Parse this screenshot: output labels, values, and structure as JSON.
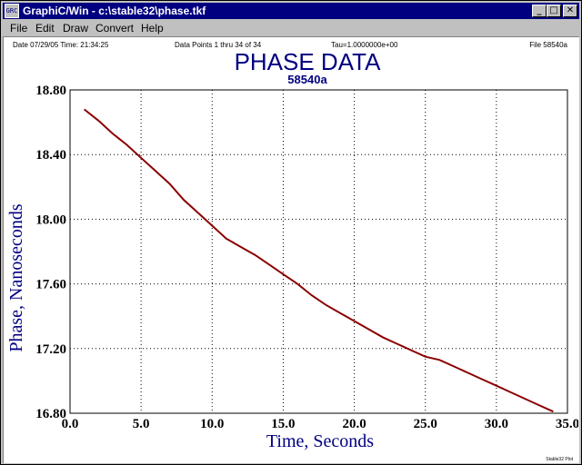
{
  "window": {
    "app_icon_text": "GRC",
    "title": "GraphiC/Win - c:\\stable32\\phase.tkf",
    "minimize_glyph": "_",
    "maximize_glyph": "□",
    "close_glyph": "✕"
  },
  "menu": [
    {
      "label": "File"
    },
    {
      "label": "Edit"
    },
    {
      "label": "Draw"
    },
    {
      "label": "Convert"
    },
    {
      "label": "Help"
    }
  ],
  "header": {
    "date": "Date  07/29/05  Time: 21:34:25",
    "points": "Data Points 1 thru 34 of 34",
    "tau": "Tau=1.0000000e+00",
    "file": "File  58540a"
  },
  "footer": "Stable32 Plot",
  "chart_data": {
    "type": "line",
    "title": "PHASE DATA",
    "subtitle": "58540a",
    "xlabel": "Time,  Seconds",
    "ylabel": "Phase,  Nanoseconds",
    "xlim": [
      0,
      35
    ],
    "ylim": [
      16.8,
      18.8
    ],
    "xticks": [
      "0.0",
      "5.0",
      "10.0",
      "15.0",
      "20.0",
      "25.0",
      "30.0",
      "35.0"
    ],
    "yticks": [
      "16.80",
      "17.20",
      "17.60",
      "18.00",
      "18.40",
      "18.80"
    ],
    "grid": true,
    "line_color": "#8b0000",
    "text_color": "#000080",
    "x": [
      1,
      2,
      3,
      4,
      5,
      6,
      7,
      8,
      9,
      10,
      11,
      12,
      13,
      14,
      15,
      16,
      17,
      18,
      19,
      20,
      21,
      22,
      23,
      24,
      25,
      26,
      27,
      28,
      29,
      30,
      31,
      32,
      33,
      34
    ],
    "values": [
      18.68,
      18.61,
      18.53,
      18.46,
      18.38,
      18.3,
      18.22,
      18.12,
      18.04,
      17.96,
      17.88,
      17.83,
      17.78,
      17.72,
      17.66,
      17.6,
      17.53,
      17.47,
      17.42,
      17.37,
      17.32,
      17.27,
      17.23,
      17.19,
      17.15,
      17.13,
      17.09,
      17.05,
      17.01,
      16.97,
      16.93,
      16.89,
      16.85,
      16.81
    ]
  }
}
